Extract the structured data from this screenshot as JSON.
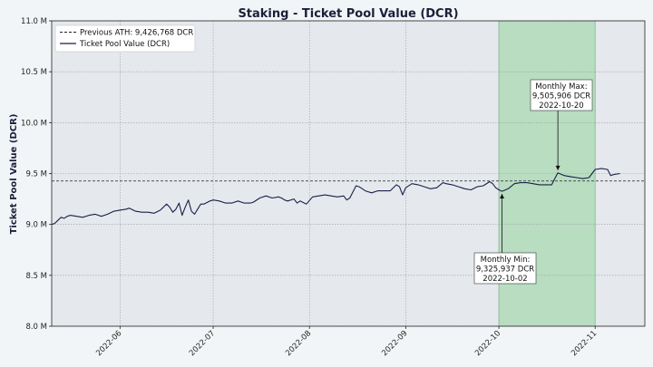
{
  "chart_data": {
    "type": "line",
    "title": "Staking - Ticket Pool Value (DCR)",
    "ylabel": "Ticket Pool Value (DCR)",
    "xlabel": "",
    "ylim": [
      8000000,
      11000000
    ],
    "xlim": [
      "2022-05-10",
      "2022-11-17"
    ],
    "grid": true,
    "legend_position": "top-left",
    "y_ticks": [
      {
        "value": 8000000,
        "label": "8.0 M"
      },
      {
        "value": 8500000,
        "label": "8.5 M"
      },
      {
        "value": 9000000,
        "label": "9.0 M"
      },
      {
        "value": 9500000,
        "label": "9.5 M"
      },
      {
        "value": 10000000,
        "label": "10.0 M"
      },
      {
        "value": 10500000,
        "label": "10.5 M"
      },
      {
        "value": 11000000,
        "label": "11.0 M"
      }
    ],
    "x_ticks": [
      {
        "value": "2022-06-01",
        "label": "2022-06"
      },
      {
        "value": "2022-07-01",
        "label": "2022-07"
      },
      {
        "value": "2022-08-01",
        "label": "2022-08"
      },
      {
        "value": "2022-09-01",
        "label": "2022-09"
      },
      {
        "value": "2022-10-01",
        "label": "2022-10"
      },
      {
        "value": "2022-11-01",
        "label": "2022-11"
      }
    ],
    "highlight_range": {
      "start": "2022-10-01",
      "end": "2022-11-01",
      "color": "#a8d8b0"
    },
    "series": [
      {
        "name": "Ticket Pool Value (DCR)",
        "color": "#1b1f4a",
        "x": [
          "2022-05-10",
          "2022-05-11",
          "2022-05-12",
          "2022-05-13",
          "2022-05-14",
          "2022-05-15",
          "2022-05-16",
          "2022-05-18",
          "2022-05-20",
          "2022-05-22",
          "2022-05-24",
          "2022-05-26",
          "2022-05-28",
          "2022-05-30",
          "2022-06-01",
          "2022-06-03",
          "2022-06-04",
          "2022-06-06",
          "2022-06-08",
          "2022-06-10",
          "2022-06-12",
          "2022-06-14",
          "2022-06-16",
          "2022-06-17",
          "2022-06-18",
          "2022-06-19",
          "2022-06-20",
          "2022-06-21",
          "2022-06-22",
          "2022-06-23",
          "2022-06-24",
          "2022-06-25",
          "2022-06-26",
          "2022-06-27",
          "2022-06-28",
          "2022-06-30",
          "2022-07-01",
          "2022-07-03",
          "2022-07-05",
          "2022-07-07",
          "2022-07-09",
          "2022-07-11",
          "2022-07-13",
          "2022-07-14",
          "2022-07-16",
          "2022-07-18",
          "2022-07-20",
          "2022-07-22",
          "2022-07-23",
          "2022-07-24",
          "2022-07-25",
          "2022-07-27",
          "2022-07-28",
          "2022-07-29",
          "2022-07-31",
          "2022-08-02",
          "2022-08-04",
          "2022-08-06",
          "2022-08-08",
          "2022-08-10",
          "2022-08-12",
          "2022-08-13",
          "2022-08-14",
          "2022-08-16",
          "2022-08-17",
          "2022-08-19",
          "2022-08-21",
          "2022-08-23",
          "2022-08-25",
          "2022-08-27",
          "2022-08-29",
          "2022-08-30",
          "2022-08-31",
          "2022-09-01",
          "2022-09-03",
          "2022-09-05",
          "2022-09-07",
          "2022-09-09",
          "2022-09-11",
          "2022-09-13",
          "2022-09-14",
          "2022-09-16",
          "2022-09-18",
          "2022-09-20",
          "2022-09-22",
          "2022-09-24",
          "2022-09-26",
          "2022-09-28",
          "2022-09-29",
          "2022-09-30",
          "2022-10-01",
          "2022-10-02",
          "2022-10-04",
          "2022-10-06",
          "2022-10-08",
          "2022-10-10",
          "2022-10-12",
          "2022-10-14",
          "2022-10-16",
          "2022-10-18",
          "2022-10-19",
          "2022-10-20",
          "2022-10-22",
          "2022-10-24",
          "2022-10-26",
          "2022-10-28",
          "2022-10-30",
          "2022-11-01",
          "2022-11-03",
          "2022-11-05",
          "2022-11-06",
          "2022-11-07",
          "2022-11-09"
        ],
        "values": [
          9000000,
          9010000,
          9040000,
          9070000,
          9060000,
          9080000,
          9090000,
          9080000,
          9070000,
          9090000,
          9100000,
          9080000,
          9100000,
          9130000,
          9140000,
          9150000,
          9160000,
          9130000,
          9120000,
          9120000,
          9110000,
          9140000,
          9200000,
          9170000,
          9120000,
          9150000,
          9210000,
          9090000,
          9170000,
          9240000,
          9130000,
          9100000,
          9150000,
          9200000,
          9200000,
          9230000,
          9240000,
          9230000,
          9210000,
          9210000,
          9230000,
          9210000,
          9210000,
          9220000,
          9260000,
          9280000,
          9260000,
          9270000,
          9260000,
          9240000,
          9230000,
          9250000,
          9210000,
          9230000,
          9200000,
          9270000,
          9280000,
          9290000,
          9280000,
          9270000,
          9280000,
          9240000,
          9260000,
          9380000,
          9370000,
          9330000,
          9310000,
          9330000,
          9330000,
          9330000,
          9390000,
          9370000,
          9290000,
          9360000,
          9400000,
          9390000,
          9370000,
          9350000,
          9360000,
          9410000,
          9400000,
          9390000,
          9370000,
          9350000,
          9340000,
          9370000,
          9380000,
          9420000,
          9400000,
          9360000,
          9340000,
          9325937,
          9350000,
          9400000,
          9410000,
          9410000,
          9400000,
          9390000,
          9390000,
          9390000,
          9450000,
          9505906,
          9480000,
          9470000,
          9460000,
          9450000,
          9460000,
          9540000,
          9550000,
          9540000,
          9480000,
          9490000,
          9500000
        ]
      }
    ],
    "reference_line": {
      "name": "Previous ATH: 9,426,768 DCR",
      "value": 9426768,
      "style": "dashed",
      "color": "#222222"
    },
    "annotations": [
      {
        "id": "max",
        "lines": [
          "Monthly Max:",
          "9,505,906 DCR",
          "2022-10-20"
        ],
        "x": "2022-10-20",
        "y": 9505906
      },
      {
        "id": "min",
        "lines": [
          "Monthly Min:",
          "9,325,937 DCR",
          "2022-10-02"
        ],
        "x": "2022-10-02",
        "y": 9325937
      }
    ],
    "legend": [
      {
        "label": "Previous ATH: 9,426,768 DCR",
        "style": "dashed"
      },
      {
        "label": "Ticket Pool Value (DCR)",
        "style": "solid"
      }
    ]
  },
  "colors": {
    "page_background": "#f2f5f7",
    "plot_background": "#e5e9ed",
    "grid": "#9aa0a6",
    "axis": "#222222",
    "highlight": "#a8d8b0"
  }
}
